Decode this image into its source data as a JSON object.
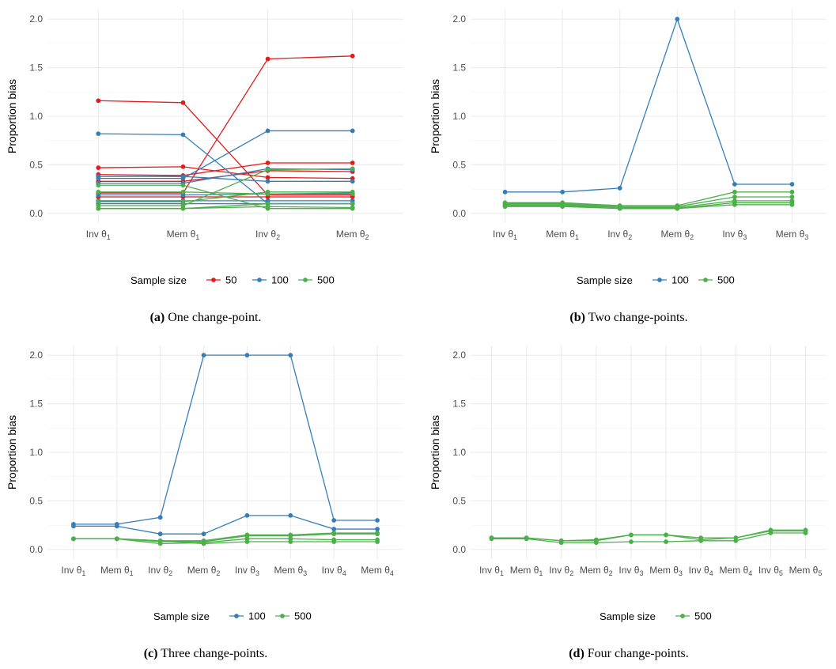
{
  "legend_title": "Sample size",
  "colors": {
    "50": "#e41a1c",
    "100": "#377eb8",
    "500": "#4daf4a"
  },
  "chart_data": [
    {
      "type": "line",
      "caption_label": "(a)",
      "caption_text": "One change-point.",
      "ylabel": "Proportion bias",
      "ylim": [
        0,
        2.0
      ],
      "yticks": [
        "0.0",
        "0.5",
        "1.0",
        "1.5",
        "2.0"
      ],
      "categories": [
        "Inv θ1",
        "Mem θ1",
        "Inv θ2",
        "Mem θ2"
      ],
      "legend": [
        "50",
        "100",
        "500"
      ],
      "series": [
        {
          "group": "50",
          "values": [
            1.16,
            1.14,
            0.19,
            0.19
          ]
        },
        {
          "group": "50",
          "values": [
            0.47,
            0.48,
            0.37,
            0.36
          ]
        },
        {
          "group": "50",
          "values": [
            0.4,
            0.39,
            0.52,
            0.52
          ]
        },
        {
          "group": "50",
          "values": [
            0.33,
            0.33,
            0.44,
            0.43
          ]
        },
        {
          "group": "50",
          "values": [
            0.21,
            0.21,
            1.59,
            1.62
          ]
        },
        {
          "group": "50",
          "values": [
            0.17,
            0.17,
            0.17,
            0.17
          ]
        },
        {
          "group": "100",
          "values": [
            0.82,
            0.81,
            0.1,
            0.1
          ]
        },
        {
          "group": "100",
          "values": [
            0.38,
            0.38,
            0.33,
            0.33
          ]
        },
        {
          "group": "100",
          "values": [
            0.36,
            0.36,
            0.85,
            0.85
          ]
        },
        {
          "group": "100",
          "values": [
            0.31,
            0.31,
            0.46,
            0.45
          ]
        },
        {
          "group": "100",
          "values": [
            0.19,
            0.19,
            0.2,
            0.21
          ]
        },
        {
          "group": "100",
          "values": [
            0.13,
            0.13,
            0.13,
            0.13
          ]
        },
        {
          "group": "100",
          "values": [
            0.1,
            0.1,
            0.1,
            0.1
          ]
        },
        {
          "group": "500",
          "values": [
            0.29,
            0.29,
            0.05,
            0.05
          ]
        },
        {
          "group": "500",
          "values": [
            0.22,
            0.22,
            0.2,
            0.2
          ]
        },
        {
          "group": "500",
          "values": [
            0.12,
            0.12,
            0.22,
            0.22
          ]
        },
        {
          "group": "500",
          "values": [
            0.08,
            0.08,
            0.45,
            0.46
          ]
        },
        {
          "group": "500",
          "values": [
            0.05,
            0.05,
            0.1,
            0.1
          ]
        },
        {
          "group": "500",
          "values": [
            0.05,
            0.05,
            0.07,
            0.06
          ]
        }
      ]
    },
    {
      "type": "line",
      "caption_label": "(b)",
      "caption_text": "Two change-points.",
      "ylabel": "Proportion bias",
      "ylim": [
        0,
        2.0
      ],
      "yticks": [
        "0.0",
        "0.5",
        "1.0",
        "1.5",
        "2.0"
      ],
      "categories": [
        "Inv θ1",
        "Mem θ1",
        "Inv θ2",
        "Mem θ2",
        "Inv θ3",
        "Mem θ3"
      ],
      "legend": [
        "100",
        "500"
      ],
      "series": [
        {
          "group": "100",
          "values": [
            0.22,
            0.22,
            0.26,
            2.0,
            0.3,
            0.3
          ]
        },
        {
          "group": "500",
          "values": [
            0.11,
            0.11,
            0.08,
            0.08,
            0.22,
            0.22
          ]
        },
        {
          "group": "500",
          "values": [
            0.1,
            0.1,
            0.07,
            0.07,
            0.17,
            0.17
          ]
        },
        {
          "group": "500",
          "values": [
            0.09,
            0.09,
            0.06,
            0.06,
            0.13,
            0.13
          ]
        },
        {
          "group": "500",
          "values": [
            0.08,
            0.08,
            0.05,
            0.05,
            0.11,
            0.11
          ]
        },
        {
          "group": "500",
          "values": [
            0.07,
            0.07,
            0.05,
            0.05,
            0.09,
            0.09
          ]
        }
      ]
    },
    {
      "type": "line",
      "caption_label": "(c)",
      "caption_text": "Three change-points.",
      "ylabel": "Proportion bias",
      "ylim": [
        0,
        2.0
      ],
      "yticks": [
        "0.0",
        "0.5",
        "1.0",
        "1.5",
        "2.0"
      ],
      "categories": [
        "Inv θ1",
        "Mem θ1",
        "Inv θ2",
        "Mem θ2",
        "Inv θ3",
        "Mem θ3",
        "Inv θ4",
        "Mem θ4"
      ],
      "legend": [
        "100",
        "500"
      ],
      "series": [
        {
          "group": "100",
          "values": [
            0.26,
            0.26,
            0.33,
            2.0,
            2.0,
            2.0,
            0.3,
            0.3
          ]
        },
        {
          "group": "100",
          "values": [
            0.24,
            0.24,
            0.16,
            0.16,
            0.35,
            0.35,
            0.21,
            0.21
          ]
        },
        {
          "group": "500",
          "values": [
            0.11,
            0.11,
            0.09,
            0.09,
            0.15,
            0.15,
            0.17,
            0.17
          ]
        },
        {
          "group": "500",
          "values": [
            0.11,
            0.11,
            0.08,
            0.08,
            0.14,
            0.14,
            0.16,
            0.16
          ]
        },
        {
          "group": "500",
          "values": [
            0.11,
            0.11,
            0.06,
            0.07,
            0.11,
            0.11,
            0.1,
            0.1
          ]
        },
        {
          "group": "500",
          "values": [
            0.11,
            0.11,
            0.09,
            0.06,
            0.08,
            0.08,
            0.08,
            0.08
          ]
        }
      ]
    },
    {
      "type": "line",
      "caption_label": "(d)",
      "caption_text": "Four change-points.",
      "ylabel": "Proportion bias",
      "ylim": [
        0,
        2.0
      ],
      "yticks": [
        "0.0",
        "0.5",
        "1.0",
        "1.5",
        "2.0"
      ],
      "categories": [
        "Inv θ1",
        "Mem θ1",
        "Inv θ2",
        "Mem θ2",
        "Inv θ3",
        "Mem θ3",
        "Inv θ4",
        "Mem θ4",
        "Inv θ5",
        "Mem θ5"
      ],
      "legend": [
        "500"
      ],
      "series": [
        {
          "group": "500",
          "values": [
            0.12,
            0.12,
            0.09,
            0.09,
            0.15,
            0.15,
            0.12,
            0.12,
            0.2,
            0.2
          ]
        },
        {
          "group": "500",
          "values": [
            0.11,
            0.11,
            0.07,
            0.07,
            0.08,
            0.08,
            0.09,
            0.09,
            0.17,
            0.17
          ]
        },
        {
          "group": "500",
          "values": [
            0.12,
            0.12,
            0.09,
            0.1,
            0.15,
            0.15,
            0.1,
            0.12,
            0.19,
            0.19
          ]
        }
      ]
    }
  ]
}
